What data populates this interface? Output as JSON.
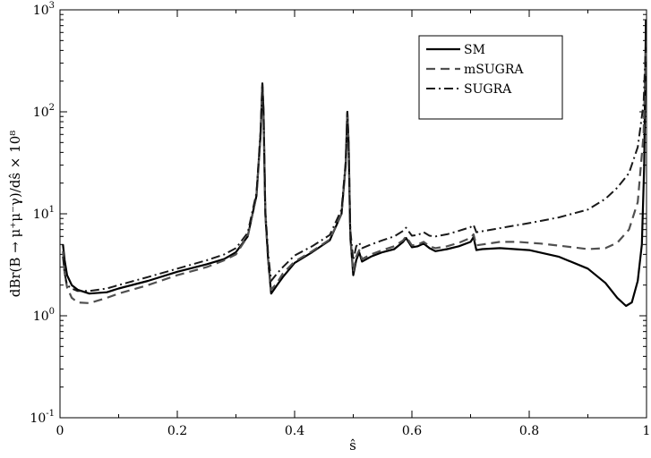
{
  "chart_data": {
    "type": "line",
    "title": "",
    "xlabel": "ŝ",
    "ylabel": "dBr(B → μ⁺μ⁻γ)/dŝ × 10⁸",
    "xlim": [
      0,
      1
    ],
    "ylim": [
      0.1,
      1000
    ],
    "y_scale": "log",
    "grid": false,
    "legend_position": "top-right",
    "x_ticks": [
      {
        "value": 0,
        "label": "0"
      },
      {
        "value": 0.2,
        "label": "0.2"
      },
      {
        "value": 0.4,
        "label": "0.4"
      },
      {
        "value": 0.6,
        "label": "0.6"
      },
      {
        "value": 0.8,
        "label": "0.8"
      },
      {
        "value": 1,
        "label": "1"
      }
    ],
    "y_ticks": [
      {
        "value": 0.1,
        "base": "10",
        "exp": "-1"
      },
      {
        "value": 1,
        "base": "10",
        "exp": "0"
      },
      {
        "value": 10,
        "base": "10",
        "exp": "1"
      },
      {
        "value": 100,
        "base": "10",
        "exp": "2"
      },
      {
        "value": 1000,
        "base": "10",
        "exp": "3"
      }
    ],
    "series": [
      {
        "name": "SM",
        "color": "#000000",
        "dash": "solid",
        "points": [
          [
            0.005,
            5.0
          ],
          [
            0.008,
            3.5
          ],
          [
            0.012,
            2.5
          ],
          [
            0.02,
            2.0
          ],
          [
            0.03,
            1.8
          ],
          [
            0.05,
            1.65
          ],
          [
            0.08,
            1.7
          ],
          [
            0.1,
            1.85
          ],
          [
            0.15,
            2.2
          ],
          [
            0.2,
            2.7
          ],
          [
            0.25,
            3.2
          ],
          [
            0.28,
            3.6
          ],
          [
            0.3,
            4.2
          ],
          [
            0.32,
            6.0
          ],
          [
            0.335,
            15.0
          ],
          [
            0.342,
            60.0
          ],
          [
            0.345,
            190.0
          ],
          [
            0.347,
            100.0
          ],
          [
            0.35,
            10.0
          ],
          [
            0.355,
            3.5
          ],
          [
            0.36,
            1.65
          ],
          [
            0.37,
            2.0
          ],
          [
            0.38,
            2.4
          ],
          [
            0.4,
            3.3
          ],
          [
            0.43,
            4.2
          ],
          [
            0.46,
            5.5
          ],
          [
            0.48,
            10.0
          ],
          [
            0.487,
            30.0
          ],
          [
            0.49,
            100.0
          ],
          [
            0.492,
            50.0
          ],
          [
            0.495,
            6.0
          ],
          [
            0.5,
            2.5
          ],
          [
            0.505,
            3.5
          ],
          [
            0.51,
            4.2
          ],
          [
            0.515,
            3.4
          ],
          [
            0.53,
            3.8
          ],
          [
            0.55,
            4.2
          ],
          [
            0.57,
            4.5
          ],
          [
            0.585,
            5.3
          ],
          [
            0.59,
            5.8
          ],
          [
            0.6,
            4.7
          ],
          [
            0.61,
            4.8
          ],
          [
            0.62,
            5.1
          ],
          [
            0.63,
            4.6
          ],
          [
            0.64,
            4.3
          ],
          [
            0.66,
            4.5
          ],
          [
            0.68,
            4.8
          ],
          [
            0.7,
            5.3
          ],
          [
            0.705,
            5.9
          ],
          [
            0.71,
            4.4
          ],
          [
            0.72,
            4.5
          ],
          [
            0.75,
            4.6
          ],
          [
            0.8,
            4.4
          ],
          [
            0.85,
            3.8
          ],
          [
            0.9,
            2.9
          ],
          [
            0.93,
            2.1
          ],
          [
            0.95,
            1.5
          ],
          [
            0.965,
            1.25
          ],
          [
            0.975,
            1.35
          ],
          [
            0.985,
            2.2
          ],
          [
            0.992,
            5.0
          ],
          [
            0.996,
            30.0
          ],
          [
            0.999,
            800.0
          ]
        ]
      },
      {
        "name": "mSUGRA",
        "color": "#505050",
        "dash": "10,6",
        "points": [
          [
            0.005,
            4.3
          ],
          [
            0.008,
            2.6
          ],
          [
            0.012,
            1.9
          ],
          [
            0.02,
            1.5
          ],
          [
            0.03,
            1.35
          ],
          [
            0.05,
            1.33
          ],
          [
            0.08,
            1.5
          ],
          [
            0.1,
            1.65
          ],
          [
            0.15,
            2.0
          ],
          [
            0.2,
            2.5
          ],
          [
            0.25,
            3.0
          ],
          [
            0.28,
            3.5
          ],
          [
            0.3,
            4.0
          ],
          [
            0.32,
            6.0
          ],
          [
            0.335,
            15.0
          ],
          [
            0.342,
            60.0
          ],
          [
            0.345,
            190.0
          ],
          [
            0.347,
            100.0
          ],
          [
            0.35,
            10.0
          ],
          [
            0.355,
            3.5
          ],
          [
            0.36,
            1.8
          ],
          [
            0.37,
            2.1
          ],
          [
            0.38,
            2.6
          ],
          [
            0.4,
            3.4
          ],
          [
            0.43,
            4.3
          ],
          [
            0.46,
            5.6
          ],
          [
            0.48,
            10.0
          ],
          [
            0.487,
            30.0
          ],
          [
            0.49,
            100.0
          ],
          [
            0.492,
            50.0
          ],
          [
            0.495,
            6.0
          ],
          [
            0.5,
            2.7
          ],
          [
            0.505,
            3.8
          ],
          [
            0.51,
            4.4
          ],
          [
            0.515,
            3.6
          ],
          [
            0.53,
            4.0
          ],
          [
            0.55,
            4.4
          ],
          [
            0.57,
            4.8
          ],
          [
            0.585,
            5.5
          ],
          [
            0.59,
            6.0
          ],
          [
            0.6,
            4.9
          ],
          [
            0.61,
            5.0
          ],
          [
            0.62,
            5.3
          ],
          [
            0.63,
            4.8
          ],
          [
            0.64,
            4.6
          ],
          [
            0.66,
            4.8
          ],
          [
            0.68,
            5.2
          ],
          [
            0.7,
            5.8
          ],
          [
            0.705,
            6.3
          ],
          [
            0.71,
            4.9
          ],
          [
            0.72,
            5.0
          ],
          [
            0.75,
            5.3
          ],
          [
            0.78,
            5.3
          ],
          [
            0.82,
            5.1
          ],
          [
            0.86,
            4.8
          ],
          [
            0.9,
            4.5
          ],
          [
            0.93,
            4.6
          ],
          [
            0.95,
            5.2
          ],
          [
            0.97,
            7.0
          ],
          [
            0.985,
            13.0
          ],
          [
            0.995,
            60.0
          ],
          [
            0.999,
            400.0
          ]
        ]
      },
      {
        "name": "SUGRA",
        "color": "#1a1a1a",
        "dash": "10,4,2,4",
        "points": [
          [
            0.005,
            3.8
          ],
          [
            0.008,
            2.6
          ],
          [
            0.012,
            2.0
          ],
          [
            0.02,
            1.85
          ],
          [
            0.03,
            1.75
          ],
          [
            0.05,
            1.75
          ],
          [
            0.08,
            1.85
          ],
          [
            0.1,
            2.0
          ],
          [
            0.15,
            2.4
          ],
          [
            0.2,
            2.9
          ],
          [
            0.25,
            3.5
          ],
          [
            0.28,
            4.0
          ],
          [
            0.3,
            4.6
          ],
          [
            0.32,
            6.5
          ],
          [
            0.335,
            16.0
          ],
          [
            0.342,
            65.0
          ],
          [
            0.345,
            190.0
          ],
          [
            0.347,
            100.0
          ],
          [
            0.35,
            11.0
          ],
          [
            0.355,
            4.0
          ],
          [
            0.36,
            2.2
          ],
          [
            0.37,
            2.6
          ],
          [
            0.38,
            3.0
          ],
          [
            0.4,
            3.9
          ],
          [
            0.43,
            4.8
          ],
          [
            0.46,
            6.2
          ],
          [
            0.48,
            11.0
          ],
          [
            0.487,
            32.0
          ],
          [
            0.49,
            100.0
          ],
          [
            0.492,
            50.0
          ],
          [
            0.495,
            7.0
          ],
          [
            0.5,
            3.5
          ],
          [
            0.505,
            4.8
          ],
          [
            0.51,
            5.2
          ],
          [
            0.515,
            4.6
          ],
          [
            0.53,
            5.0
          ],
          [
            0.55,
            5.5
          ],
          [
            0.57,
            6.0
          ],
          [
            0.585,
            6.8
          ],
          [
            0.59,
            7.3
          ],
          [
            0.6,
            6.1
          ],
          [
            0.61,
            6.2
          ],
          [
            0.62,
            6.6
          ],
          [
            0.63,
            6.1
          ],
          [
            0.64,
            6.0
          ],
          [
            0.66,
            6.3
          ],
          [
            0.68,
            6.8
          ],
          [
            0.7,
            7.4
          ],
          [
            0.705,
            7.8
          ],
          [
            0.71,
            6.6
          ],
          [
            0.73,
            6.9
          ],
          [
            0.76,
            7.4
          ],
          [
            0.8,
            8.1
          ],
          [
            0.85,
            9.2
          ],
          [
            0.9,
            11.0
          ],
          [
            0.93,
            14.0
          ],
          [
            0.95,
            18.0
          ],
          [
            0.97,
            25.0
          ],
          [
            0.985,
            45.0
          ],
          [
            0.995,
            120.0
          ],
          [
            0.999,
            500.0
          ]
        ]
      }
    ]
  }
}
